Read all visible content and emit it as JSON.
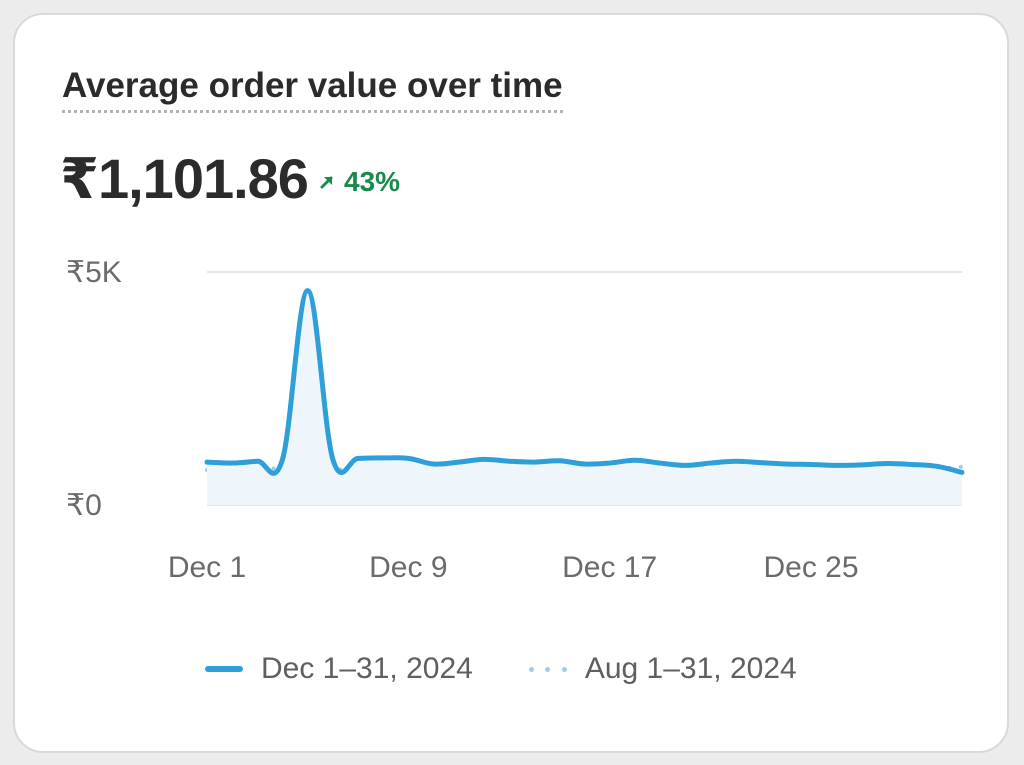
{
  "card": {
    "title": "Average order value over time",
    "value": "₹1,101.86",
    "change": "43%",
    "change_direction": "up",
    "change_color": "#1a8a4b",
    "change_icon": "arrow-up-right-icon"
  },
  "chart_data": {
    "type": "line",
    "title": "Average order value over time",
    "xlabel": "",
    "ylabel": "",
    "ylim": [
      0,
      5000
    ],
    "yticks": [
      {
        "value": 0,
        "label": "₹0"
      },
      {
        "value": 5000,
        "label": "₹5K"
      }
    ],
    "xticks": [
      {
        "day": 1,
        "label": "Dec 1"
      },
      {
        "day": 9,
        "label": "Dec 9"
      },
      {
        "day": 17,
        "label": "Dec 17"
      },
      {
        "day": 25,
        "label": "Dec 25"
      }
    ],
    "grid": true,
    "legend_position": "bottom",
    "series": [
      {
        "name": "Dec 1–31, 2024",
        "style": "solid",
        "color": "#2e9fd9",
        "x": [
          1,
          2,
          3,
          4,
          5,
          6,
          7,
          8,
          9,
          10,
          11,
          12,
          13,
          14,
          15,
          16,
          17,
          18,
          19,
          20,
          21,
          22,
          23,
          24,
          25,
          26,
          27,
          28,
          29,
          30,
          31
        ],
        "values": [
          920,
          900,
          940,
          980,
          4600,
          980,
          1000,
          1010,
          1000,
          880,
          920,
          980,
          940,
          920,
          950,
          880,
          900,
          960,
          900,
          850,
          900,
          940,
          910,
          880,
          870,
          850,
          860,
          890,
          870,
          830,
          700
        ]
      },
      {
        "name": "Aug 1–31, 2024",
        "style": "dotted",
        "color": "#9fcde4",
        "x": [
          1,
          2,
          3,
          4,
          5,
          6,
          7,
          8,
          9,
          10,
          11,
          12,
          13,
          14,
          15,
          16,
          17,
          18,
          19,
          20,
          21,
          22,
          23,
          24,
          25,
          26,
          27,
          28,
          29,
          30,
          31
        ],
        "values": [
          750,
          780,
          770,
          790,
          800,
          790,
          700,
          760,
          780,
          820,
          800,
          790,
          780,
          790,
          800,
          790,
          770,
          800,
          780,
          760,
          740,
          750,
          760,
          770,
          750,
          760,
          780,
          800,
          790,
          780,
          820
        ]
      }
    ]
  }
}
